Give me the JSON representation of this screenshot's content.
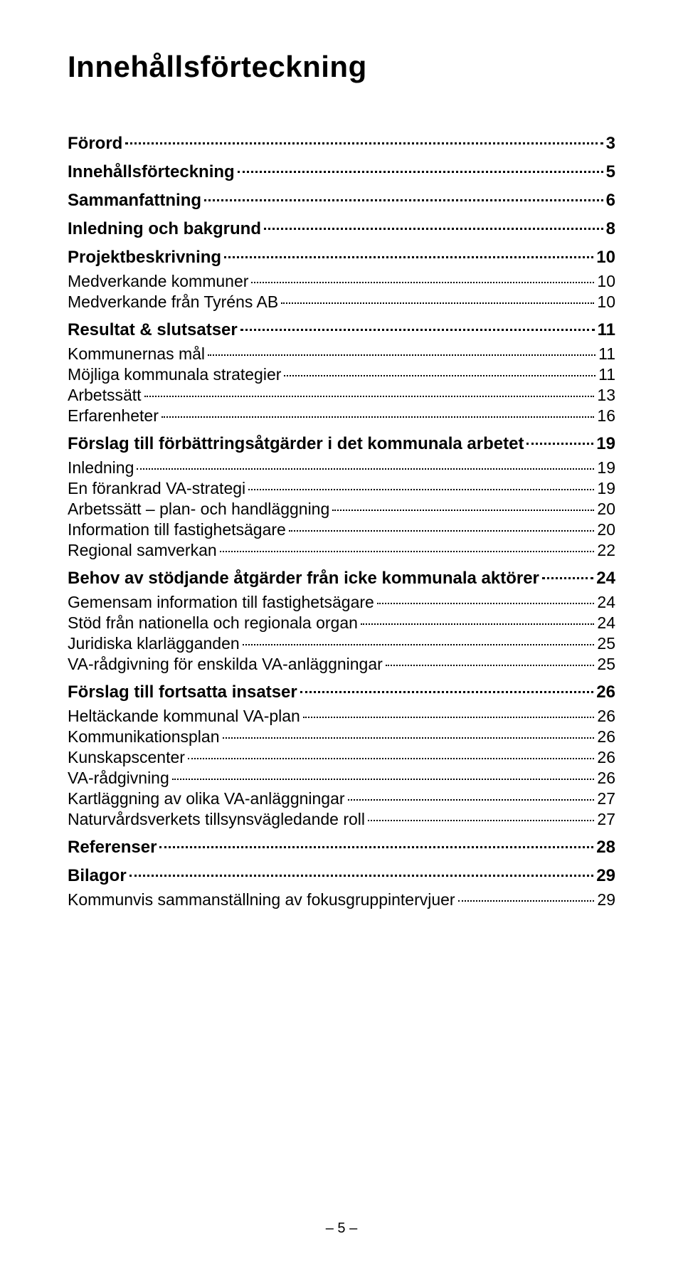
{
  "title": "Innehållsförteckning",
  "pageNumber": "– 5 –",
  "entries": [
    {
      "label": "Förord",
      "page": "3",
      "level": 0
    },
    {
      "label": "Innehållsförteckning",
      "page": "5",
      "level": 0
    },
    {
      "label": "Sammanfattning",
      "page": "6",
      "level": 0
    },
    {
      "label": "Inledning och bakgrund",
      "page": "8",
      "level": 0
    },
    {
      "label": "Projektbeskrivning",
      "page": "10",
      "level": 0
    },
    {
      "label": "Medverkande kommuner",
      "page": "10",
      "level": 1
    },
    {
      "label": "Medverkande från Tyréns AB",
      "page": "10",
      "level": 1
    },
    {
      "label": "Resultat & slutsatser",
      "page": "11",
      "level": 0
    },
    {
      "label": "Kommunernas mål",
      "page": "11",
      "level": 1
    },
    {
      "label": "Möjliga kommunala strategier",
      "page": "11",
      "level": 1
    },
    {
      "label": "Arbetssätt",
      "page": "13",
      "level": 1
    },
    {
      "label": "Erfarenheter",
      "page": "16",
      "level": 1
    },
    {
      "label": "Förslag till förbättringsåtgärder i det kommunala arbetet",
      "page": "19",
      "level": 0
    },
    {
      "label": "Inledning",
      "page": "19",
      "level": 1
    },
    {
      "label": "En förankrad VA-strategi",
      "page": "19",
      "level": 1
    },
    {
      "label": "Arbetssätt – plan- och handläggning",
      "page": "20",
      "level": 1
    },
    {
      "label": "Information till fastighetsägare",
      "page": "20",
      "level": 1
    },
    {
      "label": "Regional samverkan",
      "page": "22",
      "level": 1
    },
    {
      "label": "Behov av stödjande åtgärder från icke kommunala aktörer",
      "page": "24",
      "level": 0
    },
    {
      "label": "Gemensam information till fastighetsägare",
      "page": "24",
      "level": 1
    },
    {
      "label": "Stöd från nationella och regionala organ",
      "page": "24",
      "level": 1
    },
    {
      "label": "Juridiska klarlägganden",
      "page": "25",
      "level": 1
    },
    {
      "label": "VA-rådgivning för enskilda VA-anläggningar",
      "page": "25",
      "level": 1
    },
    {
      "label": "Förslag till fortsatta insatser",
      "page": "26",
      "level": 0
    },
    {
      "label": "Heltäckande kommunal VA-plan",
      "page": "26",
      "level": 1
    },
    {
      "label": "Kommunikationsplan",
      "page": "26",
      "level": 1
    },
    {
      "label": "Kunskapscenter",
      "page": "26",
      "level": 1
    },
    {
      "label": "VA-rådgivning",
      "page": "26",
      "level": 1
    },
    {
      "label": "Kartläggning av olika VA-anläggningar",
      "page": "27",
      "level": 1
    },
    {
      "label": "Naturvårdsverkets tillsynsvägledande roll",
      "page": "27",
      "level": 1
    },
    {
      "label": "Referenser",
      "page": "28",
      "level": 0
    },
    {
      "label": "Bilagor",
      "page": "29",
      "level": 0
    },
    {
      "label": "Kommunvis sammanställning av fokusgruppintervjuer",
      "page": "29",
      "level": 1
    }
  ]
}
